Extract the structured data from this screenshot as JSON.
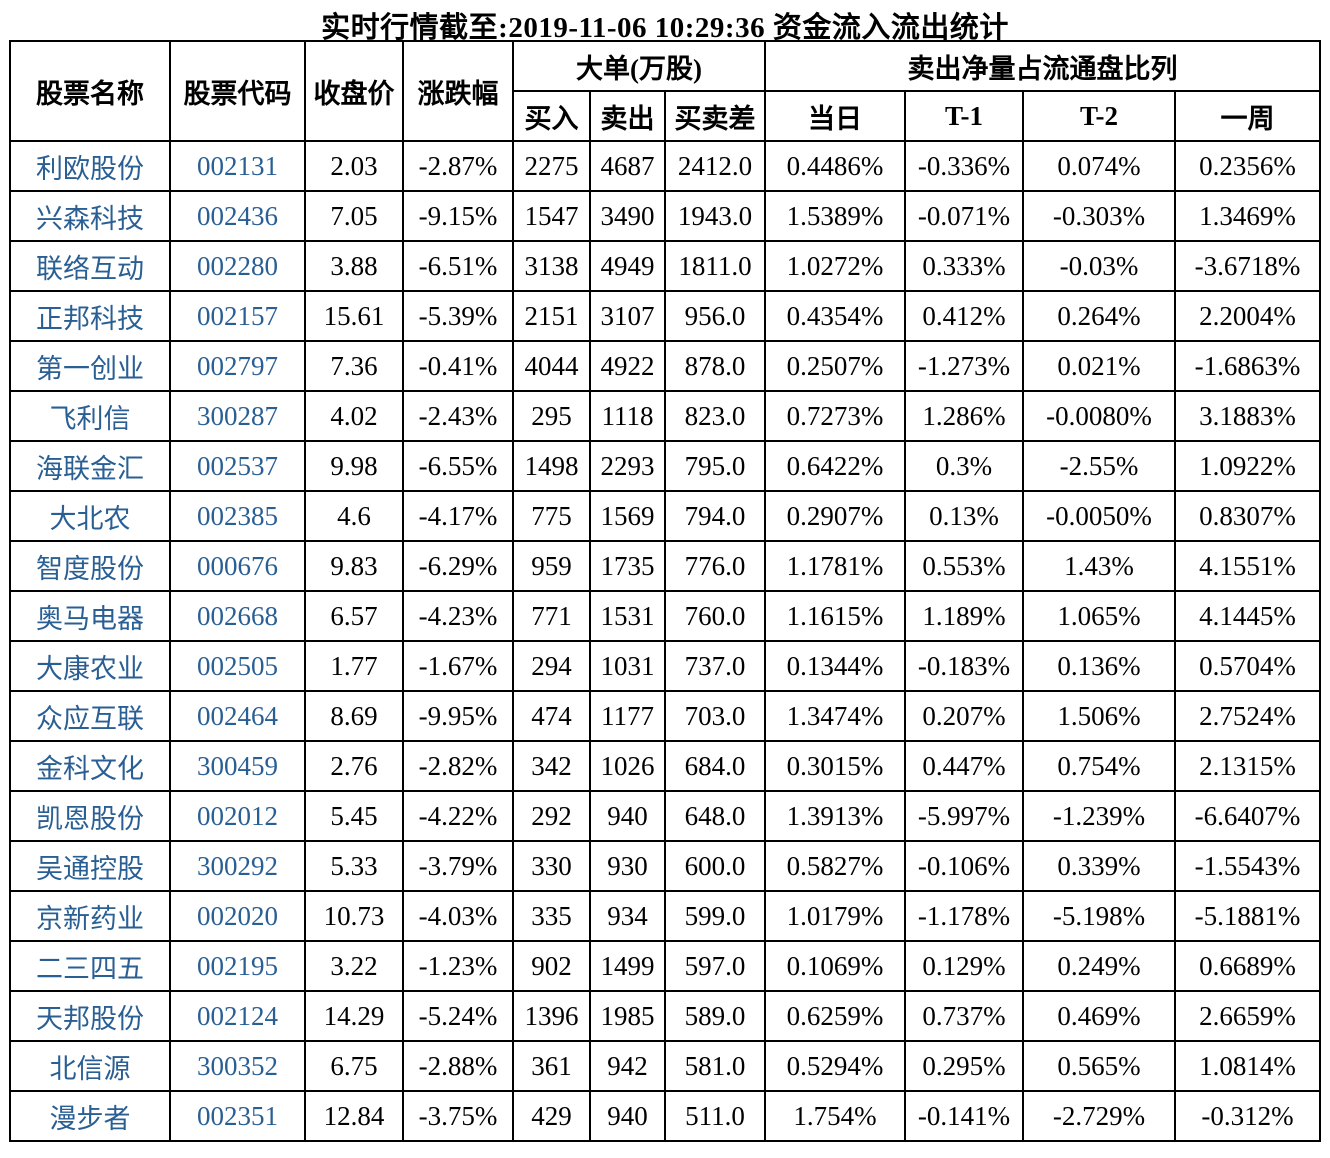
{
  "title": "实时行情截至:2019-11-06 10:29:36 资金流入流出统计",
  "colors": {
    "link_blue": "#2a5f94",
    "border": "#000000",
    "text": "#000000",
    "background": "#ffffff"
  },
  "table": {
    "headers": {
      "stock_name": "股票名称",
      "stock_code": "股票代码",
      "close_price": "收盘价",
      "change_pct": "涨跌幅",
      "large_order_group": "大单(万股)",
      "buy": "买入",
      "sell": "卖出",
      "diff": "买卖差",
      "net_sell_group": "卖出净量占流通盘比列",
      "today": "当日",
      "t1": "T-1",
      "t2": "T-2",
      "week": "一周"
    },
    "rows": [
      [
        "利欧股份",
        "002131",
        "2.03",
        "-2.87%",
        "2275",
        "4687",
        "2412.0",
        "0.4486%",
        "-0.336%",
        "0.074%",
        "0.2356%"
      ],
      [
        "兴森科技",
        "002436",
        "7.05",
        "-9.15%",
        "1547",
        "3490",
        "1943.0",
        "1.5389%",
        "-0.071%",
        "-0.303%",
        "1.3469%"
      ],
      [
        "联络互动",
        "002280",
        "3.88",
        "-6.51%",
        "3138",
        "4949",
        "1811.0",
        "1.0272%",
        "0.333%",
        "-0.03%",
        "-3.6718%"
      ],
      [
        "正邦科技",
        "002157",
        "15.61",
        "-5.39%",
        "2151",
        "3107",
        "956.0",
        "0.4354%",
        "0.412%",
        "0.264%",
        "2.2004%"
      ],
      [
        "第一创业",
        "002797",
        "7.36",
        "-0.41%",
        "4044",
        "4922",
        "878.0",
        "0.2507%",
        "-1.273%",
        "0.021%",
        "-1.6863%"
      ],
      [
        "飞利信",
        "300287",
        "4.02",
        "-2.43%",
        "295",
        "1118",
        "823.0",
        "0.7273%",
        "1.286%",
        "-0.0080%",
        "3.1883%"
      ],
      [
        "海联金汇",
        "002537",
        "9.98",
        "-6.55%",
        "1498",
        "2293",
        "795.0",
        "0.6422%",
        "0.3%",
        "-2.55%",
        "1.0922%"
      ],
      [
        "大北农",
        "002385",
        "4.6",
        "-4.17%",
        "775",
        "1569",
        "794.0",
        "0.2907%",
        "0.13%",
        "-0.0050%",
        "0.8307%"
      ],
      [
        "智度股份",
        "000676",
        "9.83",
        "-6.29%",
        "959",
        "1735",
        "776.0",
        "1.1781%",
        "0.553%",
        "1.43%",
        "4.1551%"
      ],
      [
        "奥马电器",
        "002668",
        "6.57",
        "-4.23%",
        "771",
        "1531",
        "760.0",
        "1.1615%",
        "1.189%",
        "1.065%",
        "4.1445%"
      ],
      [
        "大康农业",
        "002505",
        "1.77",
        "-1.67%",
        "294",
        "1031",
        "737.0",
        "0.1344%",
        "-0.183%",
        "0.136%",
        "0.5704%"
      ],
      [
        "众应互联",
        "002464",
        "8.69",
        "-9.95%",
        "474",
        "1177",
        "703.0",
        "1.3474%",
        "0.207%",
        "1.506%",
        "2.7524%"
      ],
      [
        "金科文化",
        "300459",
        "2.76",
        "-2.82%",
        "342",
        "1026",
        "684.0",
        "0.3015%",
        "0.447%",
        "0.754%",
        "2.1315%"
      ],
      [
        "凯恩股份",
        "002012",
        "5.45",
        "-4.22%",
        "292",
        "940",
        "648.0",
        "1.3913%",
        "-5.997%",
        "-1.239%",
        "-6.6407%"
      ],
      [
        "吴通控股",
        "300292",
        "5.33",
        "-3.79%",
        "330",
        "930",
        "600.0",
        "0.5827%",
        "-0.106%",
        "0.339%",
        "-1.5543%"
      ],
      [
        "京新药业",
        "002020",
        "10.73",
        "-4.03%",
        "335",
        "934",
        "599.0",
        "1.0179%",
        "-1.178%",
        "-5.198%",
        "-5.1881%"
      ],
      [
        "二三四五",
        "002195",
        "3.22",
        "-1.23%",
        "902",
        "1499",
        "597.0",
        "0.1069%",
        "0.129%",
        "0.249%",
        "0.6689%"
      ],
      [
        "天邦股份",
        "002124",
        "14.29",
        "-5.24%",
        "1396",
        "1985",
        "589.0",
        "0.6259%",
        "0.737%",
        "0.469%",
        "2.6659%"
      ],
      [
        "北信源",
        "300352",
        "6.75",
        "-2.88%",
        "361",
        "942",
        "581.0",
        "0.5294%",
        "0.295%",
        "0.565%",
        "1.0814%"
      ],
      [
        "漫步者",
        "002351",
        "12.84",
        "-3.75%",
        "429",
        "940",
        "511.0",
        "1.754%",
        "-0.141%",
        "-2.729%",
        "-0.312%"
      ]
    ]
  }
}
